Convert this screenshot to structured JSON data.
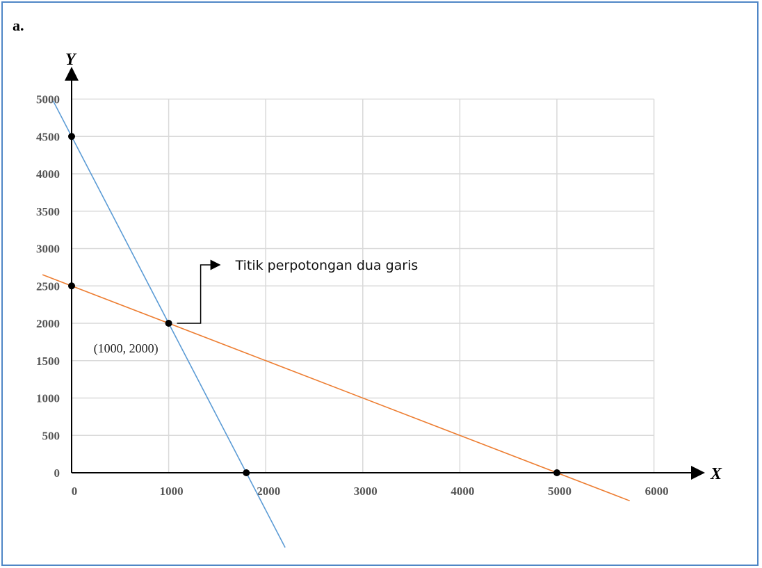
{
  "panel_label": "a.",
  "chart_data": {
    "type": "line",
    "xlabel": "X",
    "ylabel": "Y",
    "xlim": [
      0,
      6000
    ],
    "ylim": [
      0,
      5000
    ],
    "x_ticks": [
      0,
      1000,
      2000,
      3000,
      4000,
      5000,
      6000
    ],
    "y_ticks": [
      0,
      500,
      1000,
      1500,
      2000,
      2500,
      3000,
      3500,
      4000,
      4500,
      5000
    ],
    "grid": true,
    "series": [
      {
        "color": "#5b9bd5",
        "intercepts": {
          "x": 1800,
          "y": 4500
        },
        "slope": -2.5
      },
      {
        "color": "#ed7d31",
        "intercepts": {
          "x": 5000,
          "y": 2500
        },
        "slope": -0.5
      }
    ],
    "points": [
      {
        "x": 0,
        "y": 4500
      },
      {
        "x": 0,
        "y": 2500
      },
      {
        "x": 1800,
        "y": 0
      },
      {
        "x": 5000,
        "y": 0
      },
      {
        "x": 1000,
        "y": 2000
      }
    ],
    "point_label": "(1000, 2000)",
    "annotation": "Titik perpotongan dua garis"
  }
}
